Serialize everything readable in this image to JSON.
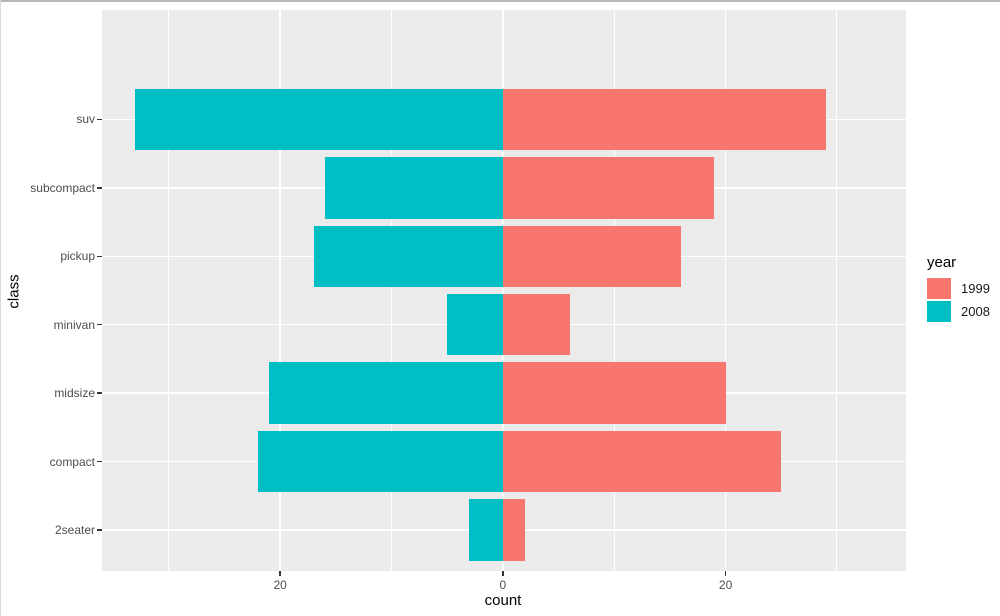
{
  "chart_data": {
    "type": "bar",
    "subtype": "diverging-horizontal-pyramid",
    "title": "",
    "xlabel": "count",
    "ylabel": "class",
    "categories_bottom_to_top": [
      "2seater",
      "compact",
      "midsize",
      "minivan",
      "pickup",
      "subcompact",
      "suv"
    ],
    "series": [
      {
        "name": "1999",
        "color": "#F8766D",
        "direction": "right",
        "values": [
          2,
          25,
          20,
          6,
          16,
          19,
          29
        ]
      },
      {
        "name": "2008",
        "color": "#00BFC4",
        "direction": "left",
        "values": [
          3,
          22,
          21,
          5,
          17,
          16,
          33
        ]
      }
    ],
    "x_axis": {
      "major_ticks": [
        {
          "value": -20,
          "label": "20"
        },
        {
          "value": 0,
          "label": "0"
        },
        {
          "value": 20,
          "label": "20"
        }
      ],
      "minor_gridlines": [
        -30,
        -10,
        10,
        30
      ],
      "xlim": [
        -36.0,
        36.2
      ]
    },
    "y_axis": {
      "band_expand": 0.6,
      "bar_rel_width": 0.9
    },
    "legend": {
      "title": "year",
      "position": "right",
      "entries": [
        {
          "label": "1999",
          "color": "#F8766D"
        },
        {
          "label": "2008",
          "color": "#00BFC4"
        }
      ]
    },
    "style": {
      "panel_bg": "#EBEBEB",
      "grid_color": "#FFFFFF",
      "axis_text_color": "#4D4D4D",
      "axis_title_color": "#000000",
      "tick_mark_color": "#333333"
    }
  }
}
